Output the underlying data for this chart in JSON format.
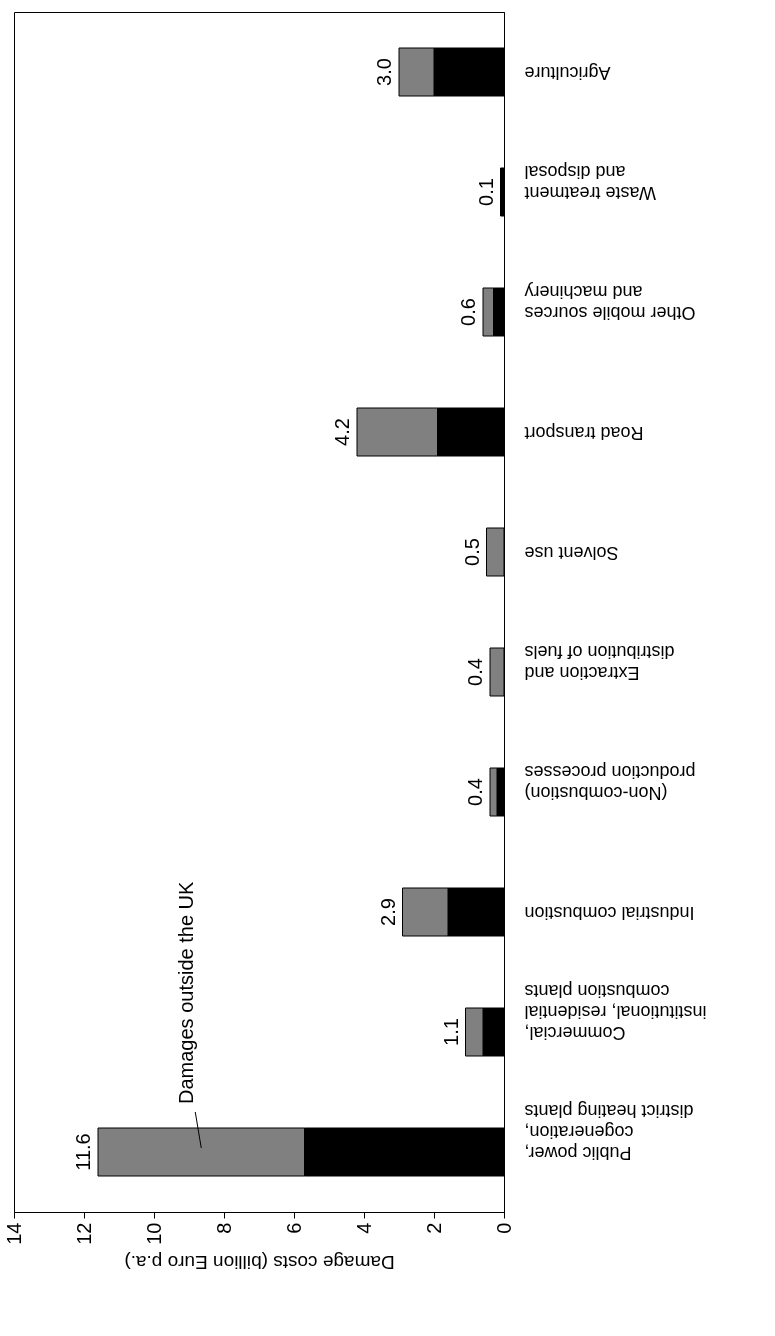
{
  "chart_data": {
    "type": "bar",
    "orientation": "horizontal",
    "stacked": true,
    "categories": [
      "Agriculture",
      "Waste treatment\nand disposal",
      "Other mobile sources\nand machinery",
      "Road transport",
      "Solvent use",
      "Extraction and\ndistribution of fuels ",
      "(Non-combustion)\nproduction processes",
      "Industrial combustion",
      "Commercial,\ninstitutional, residential\ncombustion plants",
      "Public power,\ncogeneration,\ndistrict heating plants"
    ],
    "series": [
      {
        "color": "#000000",
        "values": [
          2.0,
          0.1,
          0.3,
          1.9,
          null,
          null,
          0.2,
          1.6,
          0.6,
          5.7
        ]
      },
      {
        "color": "#808080",
        "values": [
          1.0,
          null,
          0.3,
          2.3,
          0.5,
          0.4,
          0.2,
          1.3,
          0.5,
          5.9
        ]
      }
    ],
    "totals": [
      "3.0",
      "0.1",
      "0.6",
      "4.2",
      "0.5",
      "0.4",
      "0.4",
      "2.9",
      "1.1",
      "11.6"
    ],
    "xlabel": "Damage costs (billion Euro p.a.)",
    "xlim": [
      14,
      0
    ],
    "xticks": [
      14,
      12,
      10,
      8,
      6,
      4,
      2,
      0
    ],
    "annotations": [
      "Damages outside the UK"
    ]
  }
}
